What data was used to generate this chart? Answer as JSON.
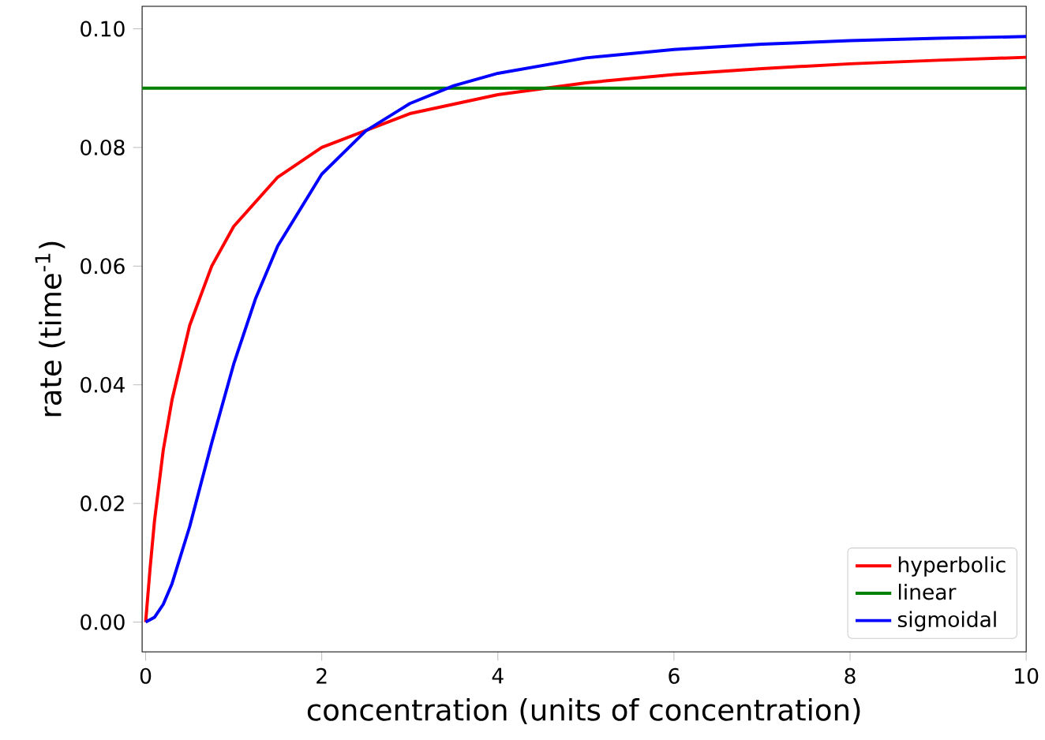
{
  "chart_data": {
    "type": "line",
    "xlabel": "concentration (units of concentration)",
    "ylabel": "rate (time$^{-1}$)",
    "xlim": [
      -0.04,
      10
    ],
    "ylim": [
      -0.005,
      0.1038
    ],
    "xticks": [
      0,
      2,
      4,
      6,
      8,
      10
    ],
    "yticks": [
      {
        "value": 0,
        "label": "0.00"
      },
      {
        "value": 0.02,
        "label": "0.02"
      },
      {
        "value": 0.04,
        "label": "0.04"
      },
      {
        "value": 0.06,
        "label": "0.06"
      },
      {
        "value": 0.08,
        "label": "0.08"
      },
      {
        "value": 0.1,
        "label": "0.10"
      }
    ],
    "legend": "bottom right",
    "grid": false,
    "line_style": "solid",
    "series": [
      {
        "name": "hyperbolic",
        "color": "#ff0000",
        "x": [
          0,
          0.05,
          0.1,
          0.2,
          0.3,
          0.5,
          0.75,
          1,
          1.5,
          2,
          3,
          4,
          5,
          6,
          7,
          8,
          9,
          10
        ],
        "values": [
          0,
          0.009,
          0.017,
          0.029,
          0.0375,
          0.05,
          0.06,
          0.0667,
          0.075,
          0.08,
          0.0857,
          0.0889,
          0.0909,
          0.0923,
          0.0933,
          0.0941,
          0.0947,
          0.0952
        ]
      },
      {
        "name": "linear",
        "color": "#008000",
        "x": [
          -0.04,
          10
        ],
        "values": [
          0.09,
          0.09
        ]
      },
      {
        "name": "sigmoidal",
        "color": "#0000ff",
        "x": [
          0,
          0.1,
          0.2,
          0.3,
          0.5,
          0.75,
          1,
          1.25,
          1.5,
          2,
          2.5,
          3,
          3.5,
          4,
          5,
          6,
          7,
          8,
          9,
          10
        ],
        "values": [
          0,
          0.0008,
          0.003,
          0.0065,
          0.0161,
          0.0302,
          0.0435,
          0.0546,
          0.0634,
          0.0755,
          0.0828,
          0.0874,
          0.0904,
          0.0925,
          0.0951,
          0.0965,
          0.0974,
          0.098,
          0.0984,
          0.0987
        ]
      }
    ]
  }
}
